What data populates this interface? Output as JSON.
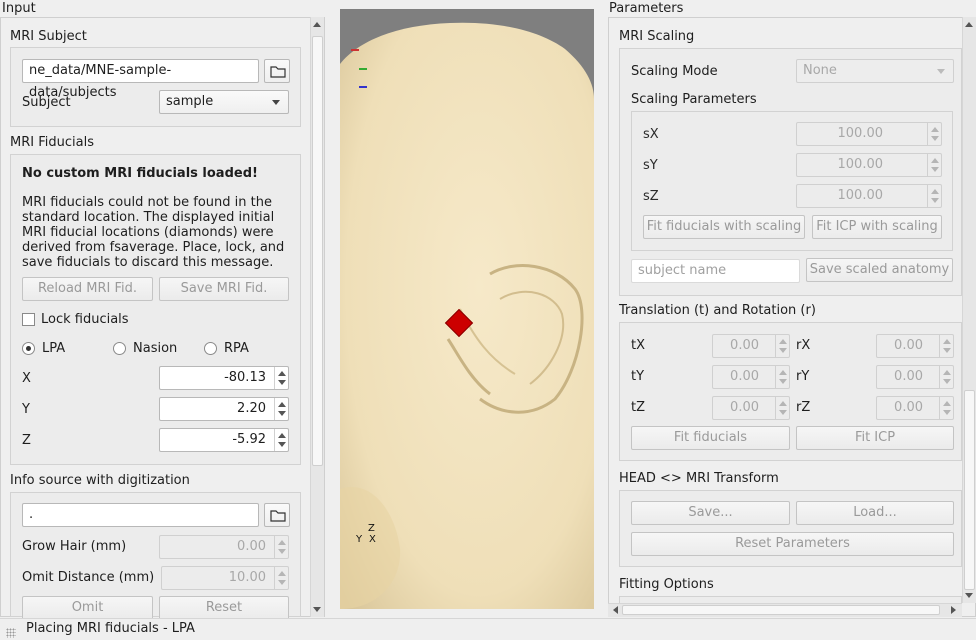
{
  "left": {
    "dock_title": "Input",
    "mri_subject": {
      "title": "MRI Subject",
      "subjects_dir": "ne_data/MNE-sample-data/subjects",
      "subject_label": "Subject",
      "subject_value": "sample"
    },
    "mri_fiducials": {
      "title": "MRI Fiducials",
      "warning_title": "No custom MRI fiducials loaded!",
      "warning_lines": [
        "MRI fiducials could not be found in the",
        "standard location. The displayed initial",
        "MRI fiducial locations (diamonds) were",
        "derived from fsaverage. Place, lock, and",
        "save fiducials to discard this message."
      ],
      "reload_label": "Reload MRI Fid.",
      "save_label": "Save MRI Fid.",
      "lock_label": "Lock fiducials",
      "radio_lpa": "LPA",
      "radio_nasion": "Nasion",
      "radio_rpa": "RPA",
      "x_label": "X",
      "x_value": "-80.13",
      "y_label": "Y",
      "y_value": "2.20",
      "z_label": "Z",
      "z_value": "-5.92"
    },
    "digitization": {
      "title": "Info source with digitization",
      "file_value": ".",
      "grow_hair_label": "Grow Hair (mm)",
      "grow_hair_value": "0.00",
      "omit_distance_label": "Omit Distance (mm)",
      "omit_distance_value": "10.00",
      "omit_label": "Omit",
      "reset_label": "Reset"
    }
  },
  "viewer": {
    "axis_z": "Z",
    "axis_y": "Y",
    "axis_x": "X"
  },
  "right": {
    "dock_title": "Parameters",
    "mri_scaling": {
      "title": "MRI Scaling",
      "mode_label": "Scaling Mode",
      "mode_value": "None",
      "params_title": "Scaling Parameters",
      "sx_label": "sX",
      "sx_value": "100.00",
      "sy_label": "sY",
      "sy_value": "100.00",
      "sz_label": "sZ",
      "sz_value": "100.00",
      "fit_fid_scaling": "Fit fiducials with scaling",
      "fit_icp_scaling": "Fit ICP with scaling",
      "subject_name_placeholder": "subject name",
      "save_scaled": "Save scaled anatomy"
    },
    "translation": {
      "title": "Translation (t) and Rotation (r)",
      "tx_label": "tX",
      "tx_value": "0.00",
      "ty_label": "tY",
      "ty_value": "0.00",
      "tz_label": "tZ",
      "tz_value": "0.00",
      "rx_label": "rX",
      "rx_value": "0.00",
      "ry_label": "rY",
      "ry_value": "0.00",
      "rz_label": "rZ",
      "rz_value": "0.00",
      "fit_fiducials": "Fit fiducials",
      "fit_icp": "Fit ICP"
    },
    "transform": {
      "title": "HEAD <> MRI Transform",
      "save_label": "Save...",
      "load_label": "Load...",
      "reset_label": "Reset Parameters"
    },
    "fitting": {
      "title": "Fitting Options"
    }
  },
  "status": {
    "text": "Placing MRI fiducials - LPA"
  },
  "colors": {
    "skin": "#f2e3c0",
    "viewer_bg": "#7f7f7f",
    "fiducial": "#cc0000"
  }
}
